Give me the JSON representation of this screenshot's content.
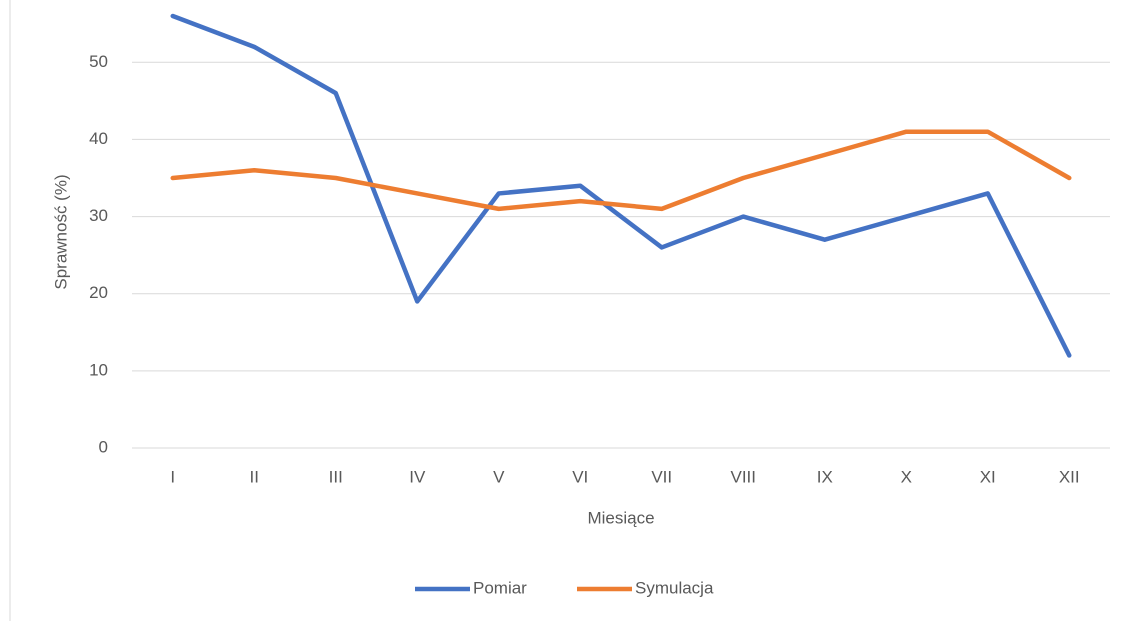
{
  "chart_data": {
    "type": "line",
    "x_label": "Miesiące",
    "y_label": "Sprawność  (%)",
    "categories": [
      "I",
      "II",
      "III",
      "IV",
      "V",
      "VI",
      "VII",
      "VIII",
      "IX",
      "X",
      "XI",
      "XII"
    ],
    "series": [
      {
        "name": "Pomiar",
        "color": "#4472c4",
        "values": [
          56,
          52,
          46,
          19,
          33,
          34,
          26,
          30,
          27,
          30,
          33,
          12
        ]
      },
      {
        "name": "Symulacja",
        "color": "#ed7d31",
        "values": [
          35,
          36,
          35,
          33,
          31,
          32,
          31,
          35,
          38,
          41,
          41,
          35
        ]
      }
    ],
    "ylim": [
      0,
      56
    ],
    "yticks": [
      0,
      10,
      20,
      30,
      40,
      50
    ],
    "grid": true,
    "legend": "bottom"
  }
}
